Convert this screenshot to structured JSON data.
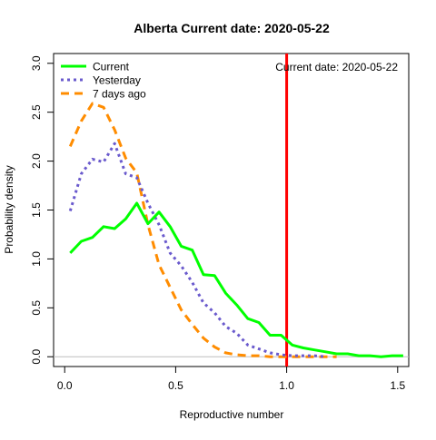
{
  "chart_data": {
    "type": "line",
    "title": "Alberta   Current date:  2020-05-22",
    "xlabel": "Reproductive number",
    "ylabel": "Probability density",
    "xlim": [
      -0.05,
      1.55
    ],
    "ylim": [
      -0.1,
      3.1
    ],
    "xticks": [
      0,
      0.5,
      1,
      1.5
    ],
    "xtick_labels": [
      "0.0",
      "0.5",
      "1.0",
      "1.5"
    ],
    "yticks": [
      0,
      0.5,
      1,
      1.5,
      2,
      2.5,
      3
    ],
    "ytick_labels": [
      "0.0",
      "0.5",
      "1.0",
      "1.5",
      "2.0",
      "2.5",
      "3.0"
    ],
    "grid": false,
    "legend_position": "top-left",
    "annotation": "Current date:  2020-05-22",
    "reference_lines": [
      {
        "orientation": "vertical",
        "x": 1.0,
        "color": "#ff0000"
      },
      {
        "orientation": "horizontal",
        "y": 0.0,
        "color": "#bebebe"
      }
    ],
    "series": [
      {
        "name": "Current",
        "color": "#00ff00",
        "dash": "solid",
        "x": [
          0.025,
          0.075,
          0.125,
          0.175,
          0.225,
          0.275,
          0.325,
          0.375,
          0.425,
          0.475,
          0.525,
          0.575,
          0.625,
          0.675,
          0.725,
          0.775,
          0.825,
          0.875,
          0.925,
          0.975,
          1.025,
          1.075,
          1.125,
          1.175,
          1.225,
          1.275,
          1.325,
          1.375,
          1.425,
          1.475,
          1.525
        ],
        "y": [
          1.06,
          1.18,
          1.22,
          1.33,
          1.31,
          1.41,
          1.57,
          1.36,
          1.48,
          1.33,
          1.13,
          1.09,
          0.84,
          0.83,
          0.65,
          0.53,
          0.39,
          0.35,
          0.22,
          0.22,
          0.12,
          0.09,
          0.07,
          0.05,
          0.03,
          0.03,
          0.01,
          0.01,
          0.0,
          0.01,
          0.01
        ]
      },
      {
        "name": "Yesterday",
        "color": "#6a5acd",
        "dash": "dotted",
        "x": [
          0.025,
          0.075,
          0.125,
          0.175,
          0.225,
          0.275,
          0.325,
          0.375,
          0.425,
          0.475,
          0.525,
          0.575,
          0.625,
          0.675,
          0.725,
          0.775,
          0.825,
          0.875,
          0.925,
          0.975,
          1.025,
          1.075,
          1.125,
          1.175
        ],
        "y": [
          1.49,
          1.87,
          2.02,
          1.99,
          2.18,
          1.87,
          1.83,
          1.57,
          1.35,
          1.06,
          0.93,
          0.76,
          0.55,
          0.45,
          0.31,
          0.24,
          0.12,
          0.08,
          0.04,
          0.02,
          0.01,
          0.01,
          0.01,
          0.0
        ]
      },
      {
        "name": "7 days ago",
        "color": "#ff8c00",
        "dash": "dashed",
        "x": [
          0.025,
          0.075,
          0.125,
          0.175,
          0.225,
          0.275,
          0.325,
          0.375,
          0.425,
          0.475,
          0.525,
          0.575,
          0.625,
          0.675,
          0.725,
          0.775,
          0.825,
          0.875,
          0.925,
          0.975,
          1.025,
          1.075,
          1.125,
          1.175,
          1.225
        ],
        "y": [
          2.15,
          2.41,
          2.59,
          2.55,
          2.32,
          2.03,
          1.88,
          1.35,
          0.94,
          0.71,
          0.48,
          0.33,
          0.19,
          0.1,
          0.04,
          0.02,
          0.01,
          0.01,
          0.0,
          0.0,
          0.0,
          0.0,
          0.0,
          0.0,
          0.0
        ]
      }
    ]
  }
}
